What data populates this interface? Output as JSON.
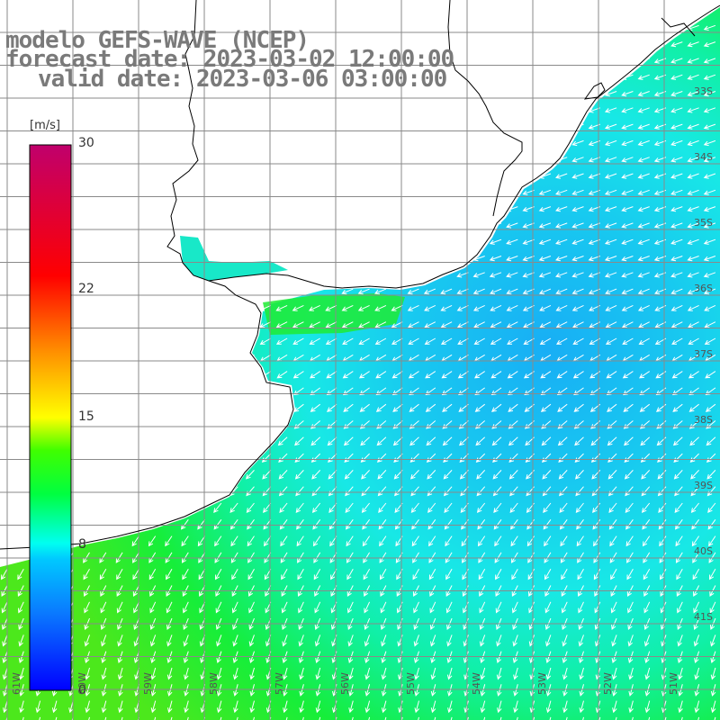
{
  "title": {
    "line1": "modelo GEFS-WAVE (NCEP)",
    "line2": "forecast date: 2023-03-02 12:00:00",
    "line3": "valid date: 2023-03-06 03:00:00"
  },
  "colorbar": {
    "unit": "[m/s]",
    "ticks": [
      "30",
      "22",
      "15",
      "8",
      "0"
    ],
    "tick_values": [
      30,
      22,
      15,
      8,
      0
    ],
    "range": [
      0,
      30
    ]
  },
  "lat_labels": [
    "33S",
    "34S",
    "35S",
    "36S",
    "37S",
    "38S",
    "39S",
    "40S",
    "41S"
  ],
  "lon_labels": [
    "61W",
    "60W",
    "59W",
    "58W",
    "57W",
    "56W",
    "55W",
    "54W",
    "53W",
    "52W",
    "51W"
  ],
  "colors": {
    "grid": "#8a8a8a",
    "land": "#ffffff",
    "arrow": "#ffffff",
    "coast": "#000000",
    "title": "#7a7a7a"
  }
}
